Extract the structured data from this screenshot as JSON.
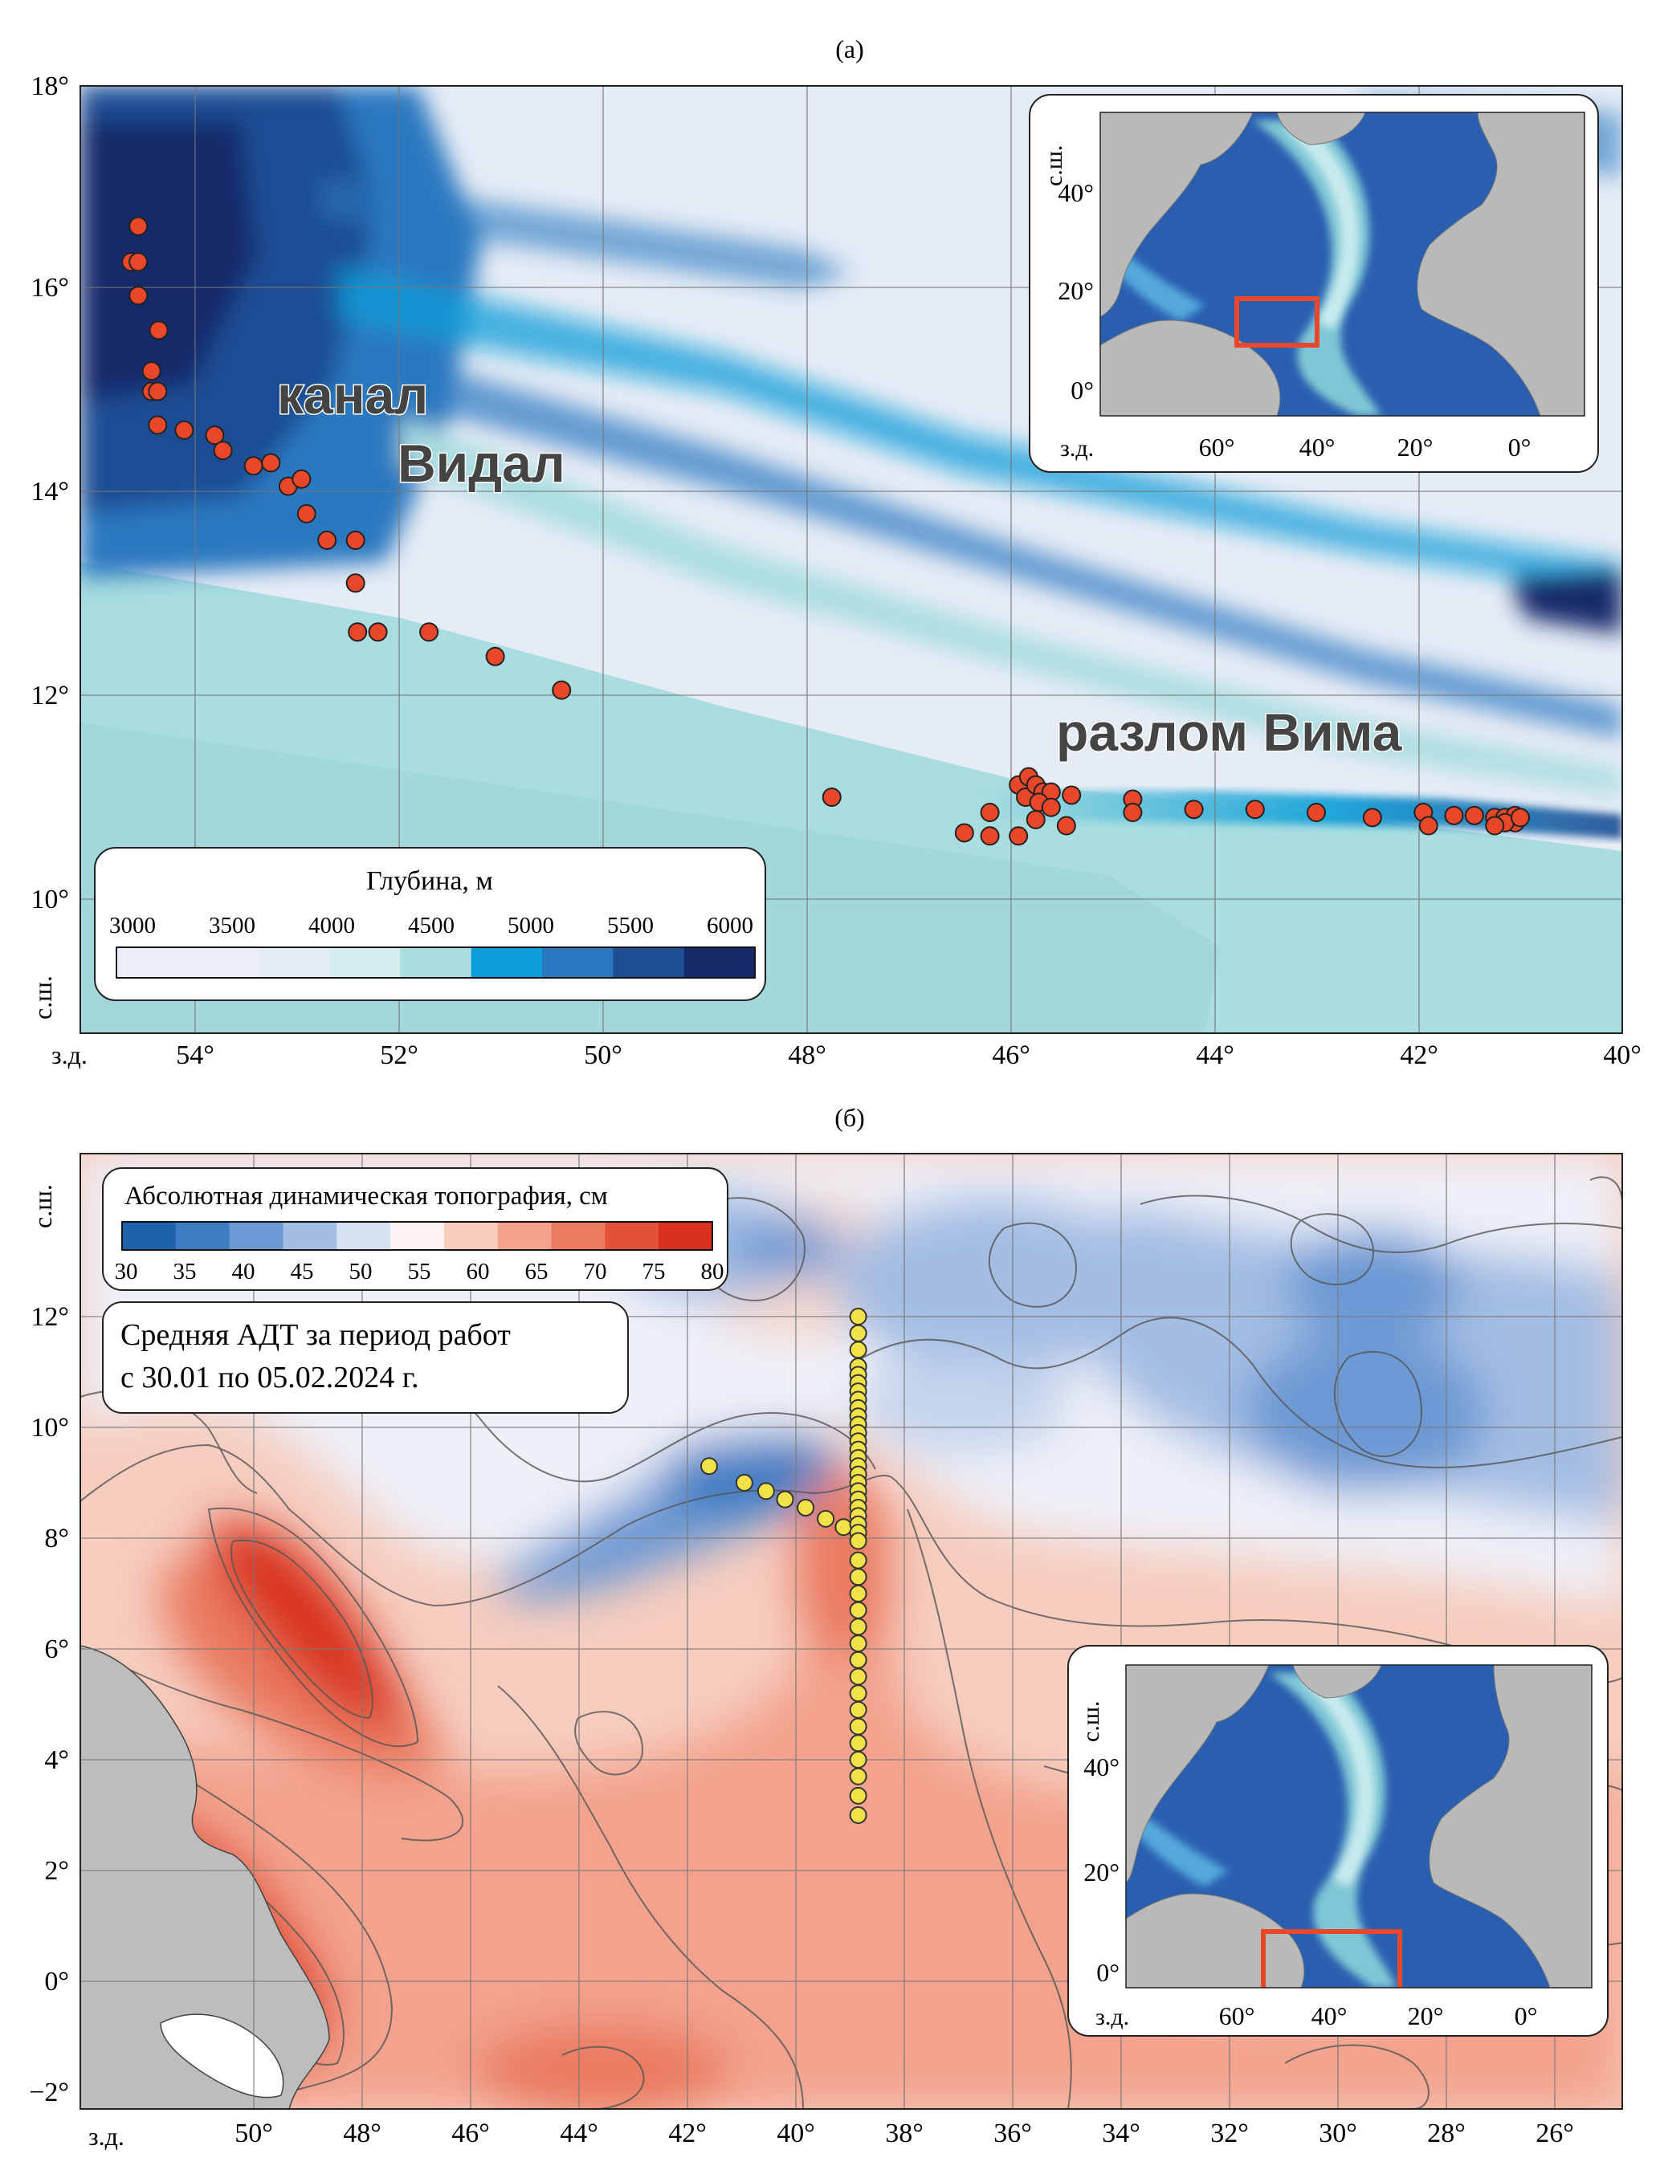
{
  "panel_a": {
    "label": "(а)",
    "lat_ticks": [
      "18°",
      "16°",
      "14°",
      "12°",
      "10°"
    ],
    "lon_ticks": [
      "54°",
      "52°",
      "50°",
      "48°",
      "46°",
      "44°",
      "42°",
      "40°"
    ],
    "hemi_lat": "с.ш.",
    "hemi_lon": "з.д.",
    "labels": {
      "channel_line1": "канал",
      "channel_line2": "Видал",
      "fault": "разлом Вима"
    },
    "legend": {
      "title": "Глубина, м",
      "ticks": [
        "3000",
        "3500",
        "4000",
        "4500",
        "5000",
        "5500",
        "6000"
      ],
      "colors": [
        "#eceef8",
        "#eceef8",
        "#e6ecf6",
        "#d7eef0",
        "#a9dde0",
        "#0b9ed8",
        "#2a78c0",
        "#1f4e94",
        "#16296a"
      ]
    },
    "stations": [
      [
        -54.55,
        16.6
      ],
      [
        -54.62,
        16.25
      ],
      [
        -54.55,
        16.25
      ],
      [
        -54.55,
        15.92
      ],
      [
        -54.35,
        15.58
      ],
      [
        -54.42,
        15.18
      ],
      [
        -54.42,
        14.98
      ],
      [
        -54.36,
        14.98
      ],
      [
        -54.36,
        14.65
      ],
      [
        -54.1,
        14.6
      ],
      [
        -53.8,
        14.55
      ],
      [
        -53.72,
        14.4
      ],
      [
        -53.42,
        14.25
      ],
      [
        -53.25,
        14.28
      ],
      [
        -53.08,
        14.05
      ],
      [
        -52.95,
        14.12
      ],
      [
        -52.9,
        13.78
      ],
      [
        -52.7,
        13.52
      ],
      [
        -52.42,
        13.52
      ],
      [
        -52.42,
        13.1
      ],
      [
        -52.4,
        12.62
      ],
      [
        -52.2,
        12.62
      ],
      [
        -51.7,
        12.62
      ],
      [
        -51.05,
        12.38
      ],
      [
        -50.4,
        12.05
      ],
      [
        -47.75,
        11.0
      ],
      [
        -46.45,
        10.65
      ],
      [
        -46.2,
        10.85
      ],
      [
        -46.2,
        10.62
      ],
      [
        -45.92,
        11.12
      ],
      [
        -45.85,
        11.0
      ],
      [
        -45.82,
        11.2
      ],
      [
        -45.75,
        11.12
      ],
      [
        -45.68,
        11.05
      ],
      [
        -45.6,
        11.05
      ],
      [
        -45.75,
        10.78
      ],
      [
        -45.72,
        10.95
      ],
      [
        -45.6,
        10.9
      ],
      [
        -45.92,
        10.62
      ],
      [
        -45.45,
        10.72
      ],
      [
        -45.4,
        11.02
      ],
      [
        -44.8,
        10.98
      ],
      [
        -44.8,
        10.85
      ],
      [
        -44.2,
        10.88
      ],
      [
        -43.6,
        10.88
      ],
      [
        -43.0,
        10.85
      ],
      [
        -42.45,
        10.8
      ],
      [
        -41.95,
        10.85
      ],
      [
        -41.9,
        10.72
      ],
      [
        -41.65,
        10.82
      ],
      [
        -41.45,
        10.82
      ],
      [
        -41.25,
        10.8
      ],
      [
        -41.15,
        10.8
      ],
      [
        -41.05,
        10.75
      ],
      [
        -41.05,
        10.82
      ],
      [
        -41.15,
        10.75
      ],
      [
        -41.25,
        10.72
      ],
      [
        -41.0,
        10.8
      ]
    ],
    "inset": {
      "lat_ticks": [
        "40°",
        "20°",
        "0°"
      ],
      "lon_ticks": [
        "60°",
        "40°",
        "20°",
        "0°"
      ],
      "hemi_lat": "с.ш.",
      "hemi_lon": "з.д."
    }
  },
  "panel_b": {
    "label": "(б)",
    "lat_ticks": [
      "12°",
      "10°",
      "8°",
      "6°",
      "4°",
      "2°",
      "0°",
      "−2°"
    ],
    "lon_ticks": [
      "50°",
      "48°",
      "46°",
      "44°",
      "42°",
      "40°",
      "38°",
      "36°",
      "34°",
      "32°",
      "30°",
      "28°",
      "26°"
    ],
    "hemi_lat": "с.ш.",
    "hemi_lon": "з.д.",
    "legend": {
      "title": "Абсолютная динамическая топография, см",
      "ticks": [
        "30",
        "35",
        "40",
        "45",
        "50",
        "55",
        "60",
        "65",
        "70",
        "75",
        "80"
      ],
      "colors": [
        "#1f62ac",
        "#3d7bc3",
        "#6c99d4",
        "#a3bde3",
        "#d6e1f1",
        "#fbf4f2",
        "#f8ccbf",
        "#f3a38d",
        "#ea7a60",
        "#e35238",
        "#d9301f"
      ]
    },
    "period_line1": "Средняя АДТ за период работ",
    "period_line2": "с 30.01 по 05.02.2024 г.",
    "section_lon": -38.85,
    "section_lats": [
      12.0,
      11.7,
      11.4,
      11.1,
      10.95,
      10.8,
      10.65,
      10.5,
      10.35,
      10.2,
      10.05,
      9.9,
      9.75,
      9.6,
      9.45,
      9.3,
      9.15,
      9.0,
      8.85,
      8.7,
      8.55,
      8.4,
      8.25,
      8.1,
      7.95,
      7.6,
      7.3,
      7.0,
      6.7,
      6.4,
      6.1,
      5.8,
      5.5,
      5.2,
      4.9,
      4.6,
      4.3,
      4.0,
      3.7,
      3.35,
      3.0
    ],
    "transect": [
      [
        -41.6,
        9.3
      ],
      [
        -40.95,
        9.0
      ],
      [
        -40.55,
        8.85
      ],
      [
        -40.2,
        8.7
      ],
      [
        -39.82,
        8.55
      ],
      [
        -39.45,
        8.35
      ],
      [
        -39.12,
        8.2
      ]
    ],
    "inset": {
      "lat_ticks": [
        "40°",
        "20°",
        "0°"
      ],
      "lon_ticks": [
        "60°",
        "40°",
        "20°",
        "0°"
      ],
      "hemi_lat": "с.ш.",
      "hemi_lon": "з.д."
    }
  }
}
